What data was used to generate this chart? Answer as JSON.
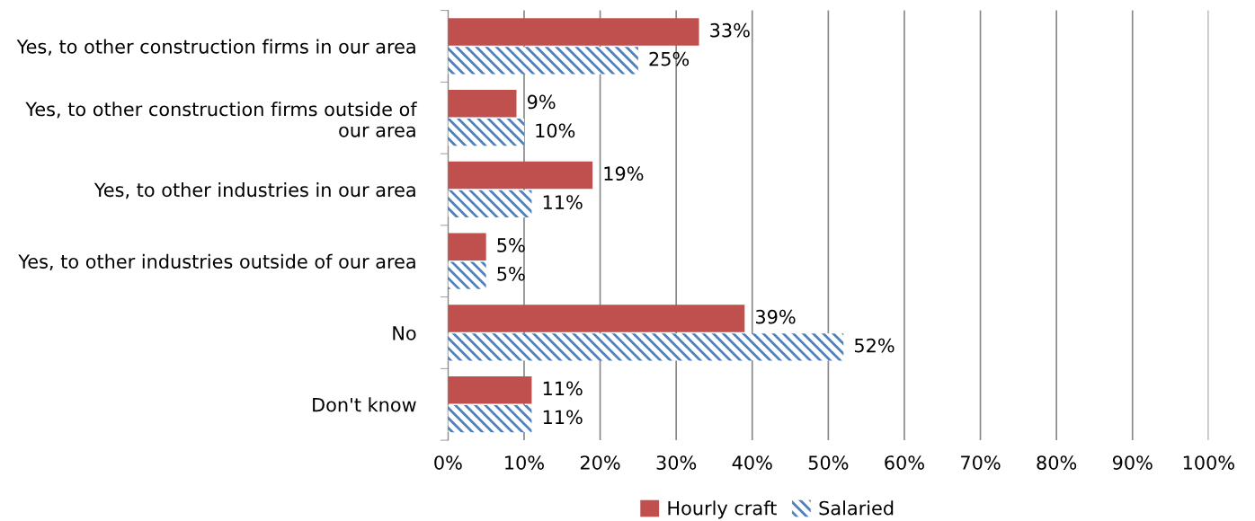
{
  "chart_data": {
    "type": "bar",
    "orientation": "horizontal",
    "categories": [
      "Yes, to other construction firms in our area",
      "Yes, to other construction firms outside of our area",
      "Yes, to other industries in our area",
      "Yes, to other industries outside of our area",
      "No",
      "Don't know"
    ],
    "series": [
      {
        "name": "Hourly craft",
        "color": "#c0504d",
        "values": [
          33,
          9,
          19,
          5,
          39,
          11
        ],
        "value_labels": [
          "33%",
          "9%",
          "19%",
          "5%",
          "39%",
          "11%"
        ]
      },
      {
        "name": "Salaried",
        "color": "#4f81bd",
        "values": [
          25,
          10,
          11,
          5,
          52,
          11
        ],
        "value_labels": [
          "25%",
          "10%",
          "11%",
          "5%",
          "52%",
          "11%"
        ]
      }
    ],
    "xlim": [
      0,
      100
    ],
    "xticks": [
      {
        "value": 0,
        "label": "0%"
      },
      {
        "value": 10,
        "label": "10%"
      },
      {
        "value": 20,
        "label": "20%"
      },
      {
        "value": 30,
        "label": "30%"
      },
      {
        "value": 40,
        "label": "40%"
      },
      {
        "value": 50,
        "label": "50%"
      },
      {
        "value": 60,
        "label": "60%"
      },
      {
        "value": 70,
        "label": "70%"
      },
      {
        "value": 80,
        "label": "80%"
      },
      {
        "value": 90,
        "label": "90%"
      },
      {
        "value": 100,
        "label": "100%"
      }
    ],
    "grid": "x",
    "legend": "bottom"
  }
}
